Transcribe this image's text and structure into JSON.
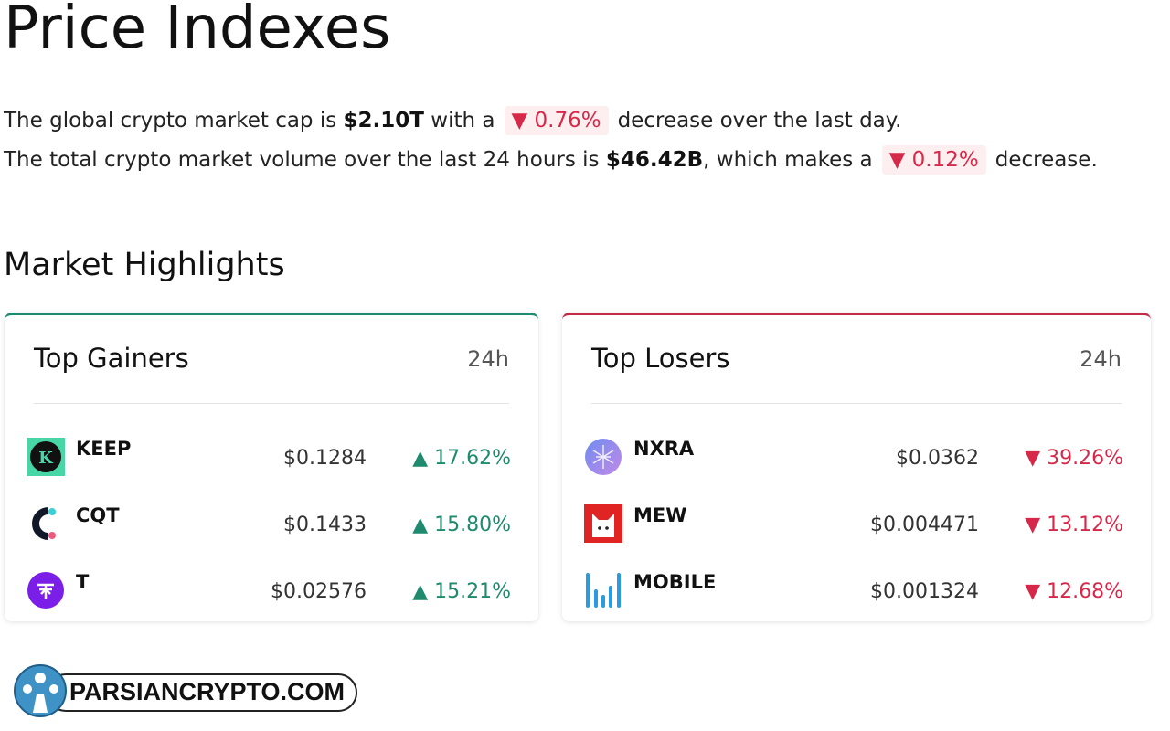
{
  "page_title": "Price Indexes",
  "summary": {
    "line1": {
      "prefix": "The global crypto market cap is ",
      "value": "$2.10T",
      "mid": " with a",
      "change": "▼ 0.76%",
      "suffix": "decrease over the last day."
    },
    "line2": {
      "prefix": "The total crypto market volume over the last 24 hours is ",
      "value": "$46.42B",
      "mid": ", which makes a",
      "change": "▼ 0.12%",
      "suffix": "decrease."
    }
  },
  "section_title": "Market Highlights",
  "colors": {
    "up": "#1e8a6e",
    "down": "#d6294a"
  },
  "gainers": {
    "title": "Top Gainers",
    "period": "24h",
    "rows": [
      {
        "symbol": "KEEP",
        "price": "$0.1284",
        "change": "▲ 17.62%",
        "icon": "keep-logo-icon"
      },
      {
        "symbol": "CQT",
        "price": "$0.1433",
        "change": "▲ 15.80%",
        "icon": "cqt-logo-icon"
      },
      {
        "symbol": "T",
        "price": "$0.02576",
        "change": "▲ 15.21%",
        "icon": "threshold-logo-icon"
      }
    ]
  },
  "losers": {
    "title": "Top Losers",
    "period": "24h",
    "rows": [
      {
        "symbol": "NXRA",
        "price": "$0.0362",
        "change": "▼ 39.26%",
        "icon": "nxra-logo-icon"
      },
      {
        "symbol": "MEW",
        "price": "$0.004471",
        "change": "▼ 13.12%",
        "icon": "mew-logo-icon"
      },
      {
        "symbol": "MOBILE",
        "price": "$0.001324",
        "change": "▼ 12.68%",
        "icon": "mobile-logo-icon"
      }
    ]
  },
  "watermark": "PARSIANCRYPTO.COM"
}
